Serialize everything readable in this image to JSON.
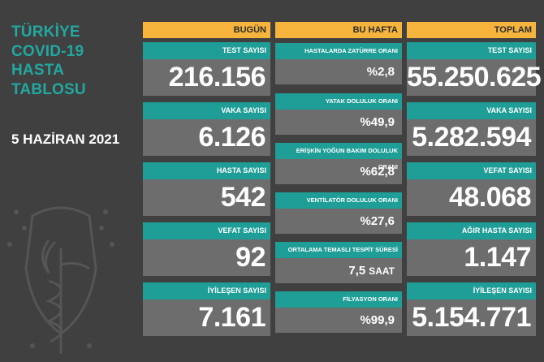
{
  "title": {
    "line1": "TÜRKİYE",
    "line2": "COVID-19",
    "line3": "HASTA",
    "line4": "TABLOSU"
  },
  "date": "5 HAZİRAN 2021",
  "colors": {
    "accent_orange": "#f6b43c",
    "accent_teal": "#1f9e97",
    "title_teal": "#21a8a0",
    "value_bg": "#6d6d6d",
    "background": "#404040"
  },
  "today": {
    "header": "BUGÜN",
    "cards": [
      {
        "label": "TEST SAYISI",
        "value": "216.156"
      },
      {
        "label": "VAKA SAYISI",
        "value": "6.126"
      },
      {
        "label": "HASTA SAYISI",
        "value": "542"
      },
      {
        "label": "VEFAT SAYISI",
        "value": "92"
      },
      {
        "label": "İYİLEŞEN SAYISI",
        "value": "7.161"
      }
    ]
  },
  "week": {
    "header": "BU HAFTA",
    "cards": [
      {
        "label": "HASTALARDA ZATÜRRE ORANI",
        "value": "%2,8",
        "unit": ""
      },
      {
        "label": "YATAK DOLULUK ORANI",
        "value": "%49,9",
        "unit": ""
      },
      {
        "label": "ERİŞKİN YOĞUN BAKIM DOLULUK ORANI",
        "value": "%62,8",
        "unit": ""
      },
      {
        "label": "VENTİLATÖR DOLULUK ORANI",
        "value": "%27,6",
        "unit": ""
      },
      {
        "label": "ORTALAMA TEMASLI TESPİT SÜRESİ",
        "value": "7,5",
        "unit": "SAAT"
      },
      {
        "label": "FİLYASYON ORANI",
        "value": "%99,9",
        "unit": ""
      }
    ]
  },
  "total": {
    "header": "TOPLAM",
    "cards": [
      {
        "label": "TEST SAYISI",
        "value": "55.250.625"
      },
      {
        "label": "VAKA SAYISI",
        "value": "5.282.594"
      },
      {
        "label": "VEFAT SAYISI",
        "value": "48.068"
      },
      {
        "label": "AĞIR HASTA SAYISI",
        "value": "1.147"
      },
      {
        "label": "İYİLEŞEN SAYISI",
        "value": "5.154.771"
      }
    ]
  },
  "icons": {
    "emblem": "ministry-emblem-icon"
  }
}
